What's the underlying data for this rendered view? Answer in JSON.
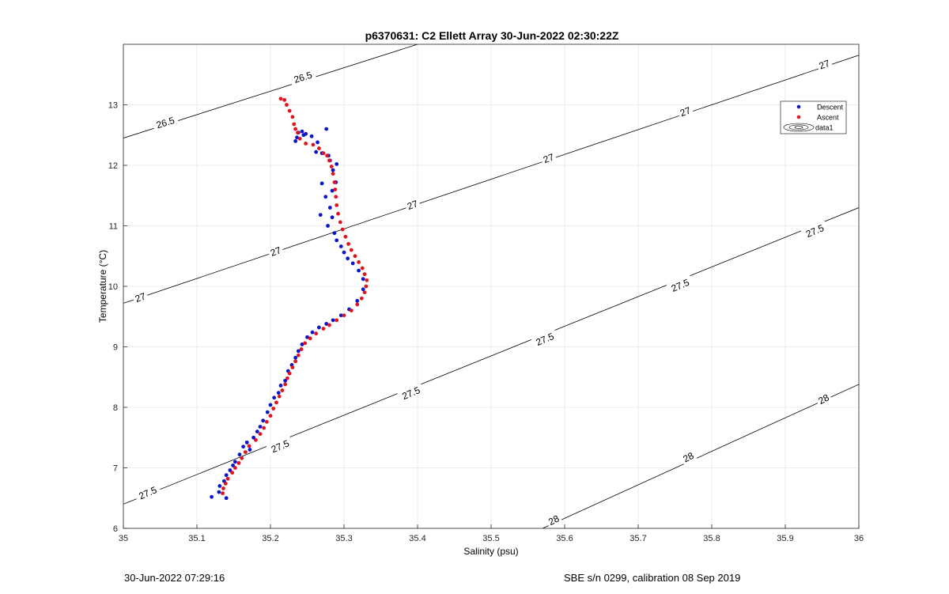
{
  "footer": {
    "left": "30-Jun-2022 07:29:16",
    "right": "SBE s/n 0299, calibration 08 Sep 2019"
  },
  "chart_data": {
    "type": "scatter",
    "title": "p6370631: C2 Ellett Array 30-Jun-2022 02:30:22Z",
    "xlabel": "Salinity (psu)",
    "ylabel": "Temperature (°C)",
    "xlim": [
      35,
      36
    ],
    "ylim": [
      6,
      14
    ],
    "xticks": [
      35,
      35.1,
      35.2,
      35.3,
      35.4,
      35.5,
      35.6,
      35.7,
      35.8,
      35.9,
      36
    ],
    "yticks": [
      6,
      7,
      8,
      9,
      10,
      11,
      12,
      13
    ],
    "grid": true,
    "legend": {
      "placement": "top-right",
      "entries": [
        "Descent",
        "Ascent",
        "data1"
      ]
    },
    "colors": {
      "descent": "#0a14c8",
      "ascent": "#e0141e",
      "contour": "#000000",
      "grid": "#e6e6e6"
    },
    "contours": [
      {
        "level": "26.5",
        "points": [
          [
            35,
            12.45
          ],
          [
            35.4,
            14
          ]
        ]
      },
      {
        "level": "27",
        "points": [
          [
            35,
            9.72
          ],
          [
            36,
            13.82
          ]
        ]
      },
      {
        "level": "27.5",
        "points": [
          [
            35,
            6.4
          ],
          [
            36,
            11.3
          ]
        ]
      },
      {
        "level": "28",
        "points": [
          [
            35.57,
            6
          ],
          [
            36,
            8.38
          ]
        ]
      }
    ],
    "contour_labels": [
      {
        "text": "26.5",
        "x": 35.057,
        "y": 12.71,
        "angle": -17
      },
      {
        "text": "26.5",
        "x": 35.244,
        "y": 13.46,
        "angle": -17
      },
      {
        "text": "27",
        "x": 35.023,
        "y": 9.82,
        "angle": -20
      },
      {
        "text": "27",
        "x": 35.207,
        "y": 10.58,
        "angle": -20
      },
      {
        "text": "27",
        "x": 35.393,
        "y": 11.35,
        "angle": -20
      },
      {
        "text": "27",
        "x": 35.578,
        "y": 12.12,
        "angle": -20
      },
      {
        "text": "27",
        "x": 35.764,
        "y": 12.89,
        "angle": -20
      },
      {
        "text": "27",
        "x": 35.953,
        "y": 13.67,
        "angle": -20
      },
      {
        "text": "27.5",
        "x": 35.033,
        "y": 6.59,
        "angle": -23
      },
      {
        "text": "27.5",
        "x": 35.213,
        "y": 7.36,
        "angle": -23
      },
      {
        "text": "27.5",
        "x": 35.391,
        "y": 8.24,
        "angle": -23
      },
      {
        "text": "27.5",
        "x": 35.573,
        "y": 9.13,
        "angle": -23
      },
      {
        "text": "27.5",
        "x": 35.757,
        "y": 10.02,
        "angle": -23
      },
      {
        "text": "27.5",
        "x": 35.94,
        "y": 10.92,
        "angle": -23
      },
      {
        "text": "28",
        "x": 35.585,
        "y": 6.14,
        "angle": -27
      },
      {
        "text": "28",
        "x": 35.768,
        "y": 7.18,
        "angle": -27
      },
      {
        "text": "28",
        "x": 35.952,
        "y": 8.14,
        "angle": -27
      }
    ],
    "series": [
      {
        "name": "Descent",
        "points": [
          [
            35.12,
            6.52
          ],
          [
            35.13,
            6.6
          ],
          [
            35.14,
            6.5
          ],
          [
            35.131,
            6.7
          ],
          [
            35.137,
            6.78
          ],
          [
            35.14,
            6.88
          ],
          [
            35.145,
            6.96
          ],
          [
            35.149,
            7.04
          ],
          [
            35.152,
            7.1
          ],
          [
            35.158,
            7.22
          ],
          [
            35.163,
            7.35
          ],
          [
            35.168,
            7.42
          ],
          [
            35.172,
            7.3
          ],
          [
            35.177,
            7.5
          ],
          [
            35.182,
            7.6
          ],
          [
            35.186,
            7.68
          ],
          [
            35.19,
            7.78
          ],
          [
            35.196,
            7.92
          ],
          [
            35.2,
            8.04
          ],
          [
            35.205,
            8.16
          ],
          [
            35.211,
            8.24
          ],
          [
            35.214,
            8.36
          ],
          [
            35.22,
            8.44
          ],
          [
            35.224,
            8.6
          ],
          [
            35.229,
            8.7
          ],
          [
            35.234,
            8.82
          ],
          [
            35.238,
            8.93
          ],
          [
            35.243,
            9.04
          ],
          [
            35.25,
            9.16
          ],
          [
            35.257,
            9.24
          ],
          [
            35.266,
            9.32
          ],
          [
            35.276,
            9.38
          ],
          [
            35.285,
            9.44
          ],
          [
            35.296,
            9.52
          ],
          [
            35.307,
            9.62
          ],
          [
            35.318,
            9.76
          ],
          [
            35.326,
            9.95
          ],
          [
            35.326,
            10.12
          ],
          [
            35.32,
            10.26
          ],
          [
            35.312,
            10.38
          ],
          [
            35.305,
            10.46
          ],
          [
            35.3,
            10.56
          ],
          [
            35.296,
            10.66
          ],
          [
            35.29,
            10.76
          ],
          [
            35.287,
            10.88
          ],
          [
            35.278,
            11.0
          ],
          [
            35.284,
            11.14
          ],
          [
            35.281,
            11.3
          ],
          [
            35.268,
            11.18
          ],
          [
            35.275,
            11.48
          ],
          [
            35.284,
            11.58
          ],
          [
            35.289,
            11.72
          ],
          [
            35.27,
            11.7
          ],
          [
            35.285,
            11.92
          ],
          [
            35.29,
            12.02
          ],
          [
            35.281,
            12.08
          ],
          [
            35.279,
            12.16
          ],
          [
            35.27,
            12.2
          ],
          [
            35.262,
            12.22
          ],
          [
            35.264,
            12.38
          ],
          [
            35.256,
            12.48
          ],
          [
            35.245,
            12.5
          ],
          [
            35.243,
            12.56
          ],
          [
            35.236,
            12.46
          ],
          [
            35.276,
            12.6
          ],
          [
            35.234,
            12.4
          ],
          [
            35.238,
            12.54
          ],
          [
            35.248,
            12.52
          ]
        ]
      },
      {
        "name": "Ascent",
        "points": [
          [
            35.135,
            6.58
          ],
          [
            35.136,
            6.66
          ],
          [
            35.139,
            6.74
          ],
          [
            35.142,
            6.82
          ],
          [
            35.148,
            6.92
          ],
          [
            35.152,
            7.0
          ],
          [
            35.157,
            7.08
          ],
          [
            35.161,
            7.16
          ],
          [
            35.166,
            7.26
          ],
          [
            35.171,
            7.36
          ],
          [
            35.18,
            7.46
          ],
          [
            35.186,
            7.56
          ],
          [
            35.191,
            7.66
          ],
          [
            35.195,
            7.76
          ],
          [
            35.2,
            7.86
          ],
          [
            35.204,
            7.98
          ],
          [
            35.208,
            8.08
          ],
          [
            35.212,
            8.18
          ],
          [
            35.216,
            8.28
          ],
          [
            35.22,
            8.38
          ],
          [
            35.223,
            8.48
          ],
          [
            35.226,
            8.56
          ],
          [
            35.23,
            8.66
          ],
          [
            35.234,
            8.76
          ],
          [
            35.238,
            8.86
          ],
          [
            35.242,
            8.96
          ],
          [
            35.247,
            9.06
          ],
          [
            35.254,
            9.14
          ],
          [
            35.262,
            9.22
          ],
          [
            35.272,
            9.3
          ],
          [
            35.28,
            9.36
          ],
          [
            35.29,
            9.44
          ],
          [
            35.3,
            9.52
          ],
          [
            35.31,
            9.6
          ],
          [
            35.318,
            9.7
          ],
          [
            35.324,
            9.8
          ],
          [
            35.328,
            9.9
          ],
          [
            35.33,
            10.0
          ],
          [
            35.331,
            10.1
          ],
          [
            35.328,
            10.2
          ],
          [
            35.325,
            10.3
          ],
          [
            35.32,
            10.4
          ],
          [
            35.315,
            10.5
          ],
          [
            35.31,
            10.6
          ],
          [
            35.306,
            10.7
          ],
          [
            35.302,
            10.82
          ],
          [
            35.298,
            10.94
          ],
          [
            35.295,
            11.06
          ],
          [
            35.292,
            11.2
          ],
          [
            35.29,
            11.34
          ],
          [
            35.289,
            11.48
          ],
          [
            35.288,
            11.6
          ],
          [
            35.287,
            11.72
          ],
          [
            35.285,
            11.86
          ],
          [
            35.283,
            11.98
          ],
          [
            35.28,
            12.08
          ],
          [
            35.277,
            12.16
          ],
          [
            35.272,
            12.2
          ],
          [
            35.266,
            12.28
          ],
          [
            35.258,
            12.34
          ],
          [
            35.248,
            12.36
          ],
          [
            35.24,
            12.44
          ],
          [
            35.237,
            12.54
          ],
          [
            35.234,
            12.6
          ],
          [
            35.232,
            12.68
          ],
          [
            35.23,
            12.8
          ],
          [
            35.226,
            12.9
          ],
          [
            35.222,
            13.0
          ],
          [
            35.219,
            13.08
          ],
          [
            35.214,
            13.1
          ]
        ]
      }
    ]
  }
}
